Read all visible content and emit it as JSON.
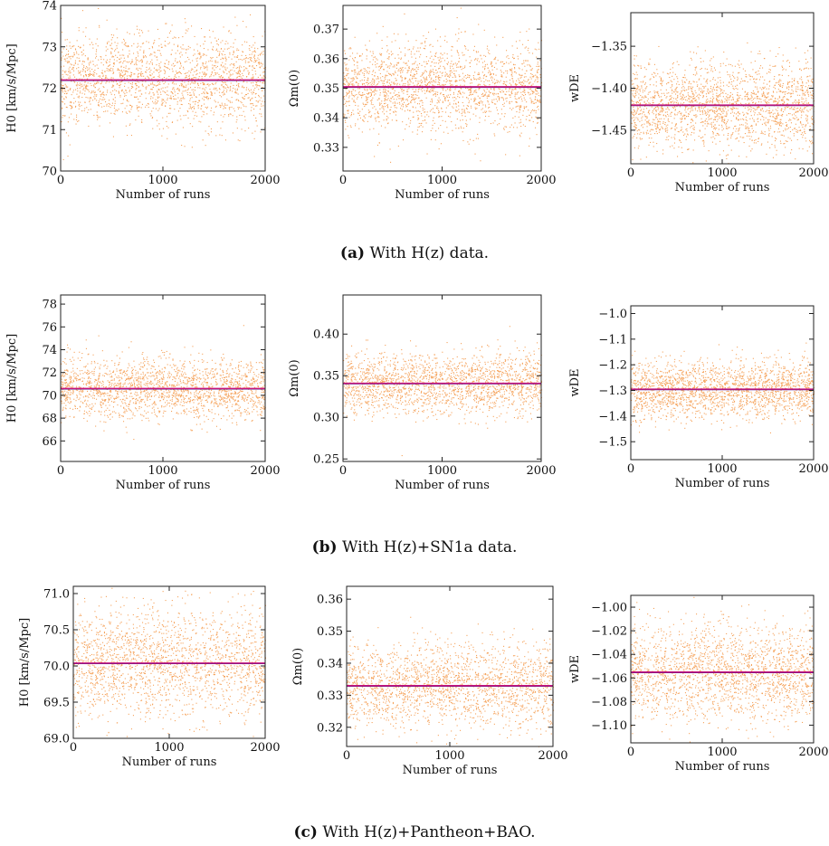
{
  "captions": [
    {
      "tag": "(a)",
      "text": "With H(z) data."
    },
    {
      "tag": "(b)",
      "text": "With H(z)+SN1a data."
    },
    {
      "tag": "(c)",
      "text": "With H(z)+Pantheon+BAO."
    }
  ],
  "colors": {
    "points": "#f5a25a",
    "mean_line": "#c8147a",
    "mean_line_alt": "#5a1a8c"
  },
  "chart_data": [
    {
      "type": "scatter",
      "row": "a",
      "xlabel": "Number of runs",
      "ylabel": "H0 [km/s/Mpc]",
      "xlim": [
        0,
        2000
      ],
      "ylim": [
        70,
        74
      ],
      "xticks": [
        0,
        1000,
        2000
      ],
      "yticks": [
        70,
        71,
        72,
        73,
        74
      ],
      "mean": 72.2,
      "spread": 0.55,
      "n_points": 2000
    },
    {
      "type": "scatter",
      "row": "a",
      "xlabel": "Number of runs",
      "ylabel": "Ωm(0)",
      "xlim": [
        0,
        2000
      ],
      "ylim": [
        0.322,
        0.378
      ],
      "xticks": [
        0,
        1000,
        2000
      ],
      "yticks": [
        0.33,
        0.34,
        0.35,
        0.36,
        0.37
      ],
      "mean": 0.3505,
      "spread": 0.0075,
      "n_points": 2000
    },
    {
      "type": "scatter",
      "row": "a",
      "xlabel": "Number of runs",
      "ylabel": "wDE",
      "xlim": [
        0,
        2000
      ],
      "ylim": [
        -1.49,
        -1.31
      ],
      "xticks": [
        0,
        1000,
        2000
      ],
      "yticks": [
        -1.45,
        -1.4,
        -1.35
      ],
      "mean": -1.42,
      "spread": 0.025,
      "n_points": 2000
    },
    {
      "type": "scatter",
      "row": "b",
      "xlabel": "Number of runs",
      "ylabel": "H0 [km/s/Mpc]",
      "xlim": [
        0,
        2000
      ],
      "ylim": [
        64.2,
        78.8
      ],
      "xticks": [
        0,
        1000,
        2000
      ],
      "yticks": [
        66,
        68,
        70,
        72,
        74,
        76,
        78
      ],
      "mean": 70.6,
      "spread": 1.3,
      "n_points": 2000
    },
    {
      "type": "scatter",
      "row": "b",
      "xlabel": "Number of runs",
      "ylabel": "Ωm(0)",
      "xlim": [
        0,
        2000
      ],
      "ylim": [
        0.247,
        0.447
      ],
      "xticks": [
        0,
        1000,
        2000
      ],
      "yticks": [
        0.25,
        0.3,
        0.35,
        0.4
      ],
      "mean": 0.341,
      "spread": 0.018,
      "n_points": 2000
    },
    {
      "type": "scatter",
      "row": "b",
      "xlabel": "Number of runs",
      "ylabel": "wDE",
      "xlim": [
        0,
        2000
      ],
      "ylim": [
        -1.57,
        -0.97
      ],
      "xticks": [
        0,
        1000,
        2000
      ],
      "yticks": [
        -1.5,
        -1.4,
        -1.3,
        -1.2,
        -1.1,
        -1.0
      ],
      "mean": -1.295,
      "spread": 0.055,
      "n_points": 2000
    },
    {
      "type": "scatter",
      "row": "c",
      "xlabel": "Number of runs",
      "ylabel": "H0 [km/s/Mpc]",
      "xlim": [
        0,
        2000
      ],
      "ylim": [
        69.0,
        71.1
      ],
      "xticks": [
        0,
        1000,
        2000
      ],
      "yticks": [
        69.0,
        69.5,
        70.0,
        70.5,
        71.0
      ],
      "mean": 70.04,
      "spread": 0.38,
      "n_points": 2000
    },
    {
      "type": "scatter",
      "row": "c",
      "xlabel": "Number of runs",
      "ylabel": "Ωm(0)",
      "xlim": [
        0,
        2000
      ],
      "ylim": [
        0.314,
        0.364
      ],
      "xticks": [
        0,
        1000,
        2000
      ],
      "yticks": [
        0.32,
        0.33,
        0.34,
        0.35,
        0.36
      ],
      "mean": 0.333,
      "spread": 0.0065,
      "n_points": 2000
    },
    {
      "type": "scatter",
      "row": "c",
      "xlabel": "Number of runs",
      "ylabel": "wDE",
      "xlim": [
        0,
        2000
      ],
      "ylim": [
        -1.115,
        -0.99
      ],
      "xticks": [
        0,
        1000,
        2000
      ],
      "yticks": [
        -1.1,
        -1.08,
        -1.06,
        -1.04,
        -1.02,
        -1.0
      ],
      "mean": -1.055,
      "spread": 0.02,
      "n_points": 2000
    }
  ]
}
